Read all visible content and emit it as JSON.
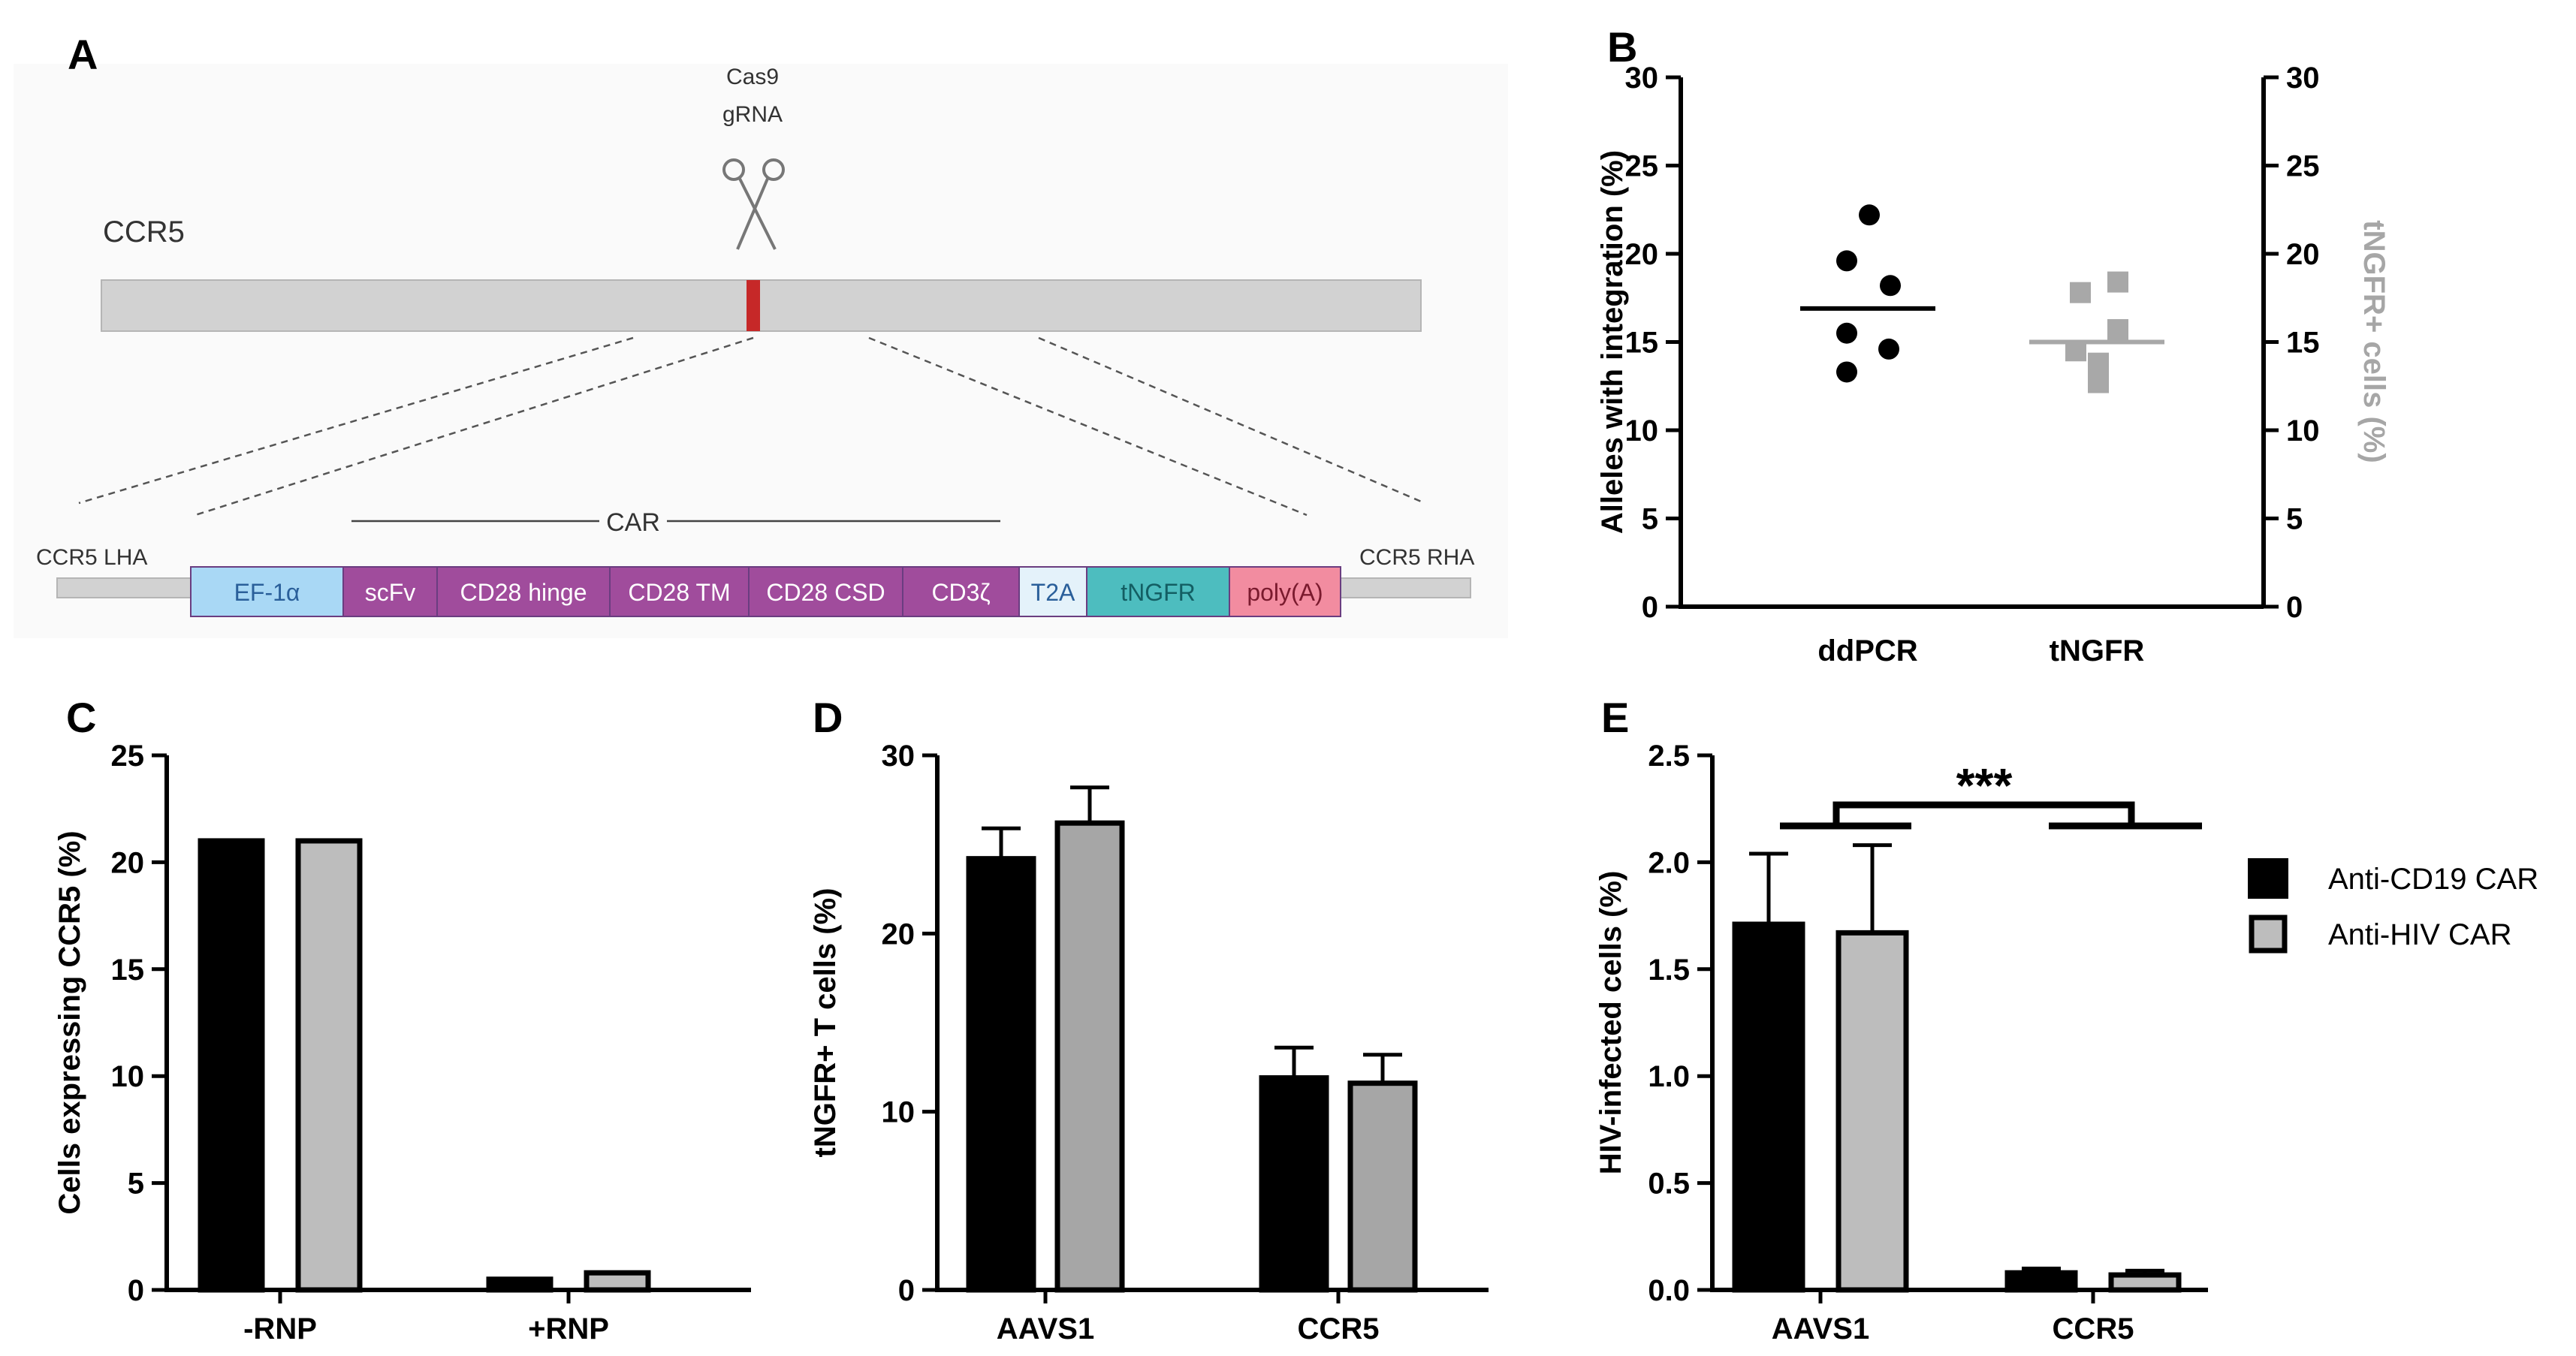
{
  "panel_labels": {
    "a": "A",
    "b": "B",
    "c": "C",
    "d": "D",
    "e": "E"
  },
  "diagram": {
    "gene": "CCR5",
    "cas9": "Cas9",
    "grna": "gRNA",
    "car": "CAR",
    "lha": "CCR5 LHA",
    "rha": "CCR5 RHA",
    "segments": [
      {
        "label": "EF-1α",
        "fill": "#a9d8f5",
        "text_color": "#2a5f9a"
      },
      {
        "label": "scFv",
        "fill": "#a04c9c",
        "text_color": "#ffffff"
      },
      {
        "label": "CD28 hinge",
        "fill": "#a04c9c",
        "text_color": "#ffffff"
      },
      {
        "label": "CD28 TM",
        "fill": "#a04c9c",
        "text_color": "#ffffff"
      },
      {
        "label": "CD28 CSD",
        "fill": "#a04c9c",
        "text_color": "#ffffff"
      },
      {
        "label": "CD3ζ",
        "fill": "#a04c9c",
        "text_color": "#ffffff"
      },
      {
        "label": "T2A",
        "fill": "#e4f2fa",
        "text_color": "#2a5f9a"
      },
      {
        "label": "tNGFR",
        "fill": "#4dbdbf",
        "text_color": "#135e63"
      },
      {
        "label": "poly(A)",
        "fill": "#f28ca0",
        "text_color": "#7a1a2e"
      }
    ]
  },
  "colors": {
    "black": "#000000",
    "gray": "#bdbdbd",
    "gray_mid": "#a8a8a8",
    "gray_b": "#a6a6a6",
    "cut": "#c62828"
  },
  "chart_data": [
    {
      "panel": "B",
      "type": "scatter",
      "ylabel": "Alleles with integration (%)",
      "y2label": "tNGFR+ cells (%)",
      "ylim": [
        0,
        30
      ],
      "yticks": [
        "0",
        "5",
        "10",
        "15",
        "20",
        "25",
        "30"
      ],
      "categories": [
        "ddPCR",
        "tNGFR"
      ],
      "series": [
        {
          "values": [
            22.2,
            19.6,
            18.2,
            15.5,
            14.6,
            13.3
          ],
          "mean": 16.9
        },
        {
          "values": [
            18.4,
            17.8,
            15.7,
            14.5,
            13.8,
            12.7
          ],
          "mean": 15.0
        }
      ]
    },
    {
      "panel": "C",
      "type": "bar",
      "ylabel": "Cells expressing CCR5 (%)",
      "ylim": [
        0,
        25
      ],
      "yticks": [
        "0",
        "5",
        "10",
        "15",
        "20",
        "25"
      ],
      "categories": [
        "-RNP",
        "+RNP"
      ],
      "series": [
        {
          "values": [
            21.0,
            0.5
          ]
        },
        {
          "values": [
            21.0,
            0.8
          ]
        }
      ]
    },
    {
      "panel": "D",
      "type": "bar",
      "ylabel": "tNGFR+ T cells  (%)",
      "ylim": [
        0,
        30
      ],
      "yticks": [
        "0",
        "10",
        "20",
        "30"
      ],
      "categories": [
        "AAVS1",
        "CCR5"
      ],
      "series": [
        {
          "values": [
            24.2,
            11.9
          ],
          "errors": [
            1.7,
            1.7
          ]
        },
        {
          "values": [
            26.2,
            11.6
          ],
          "errors": [
            2.0,
            1.6
          ]
        }
      ]
    },
    {
      "panel": "E",
      "type": "bar",
      "ylabel": "HIV-infected cells (%)",
      "ylim": [
        0,
        2.5
      ],
      "yticks": [
        "0.0",
        "0.5",
        "1.0",
        "1.5",
        "2.0",
        "2.5"
      ],
      "categories": [
        "AAVS1",
        "CCR5"
      ],
      "series": [
        {
          "name": "Anti-CD19 CAR",
          "values": [
            1.71,
            0.08
          ],
          "errors": [
            0.33,
            0.02
          ]
        },
        {
          "name": "Anti-HIV CAR",
          "values": [
            1.67,
            0.07
          ],
          "errors": [
            0.41,
            0.02
          ]
        }
      ],
      "significance": "***"
    }
  ]
}
